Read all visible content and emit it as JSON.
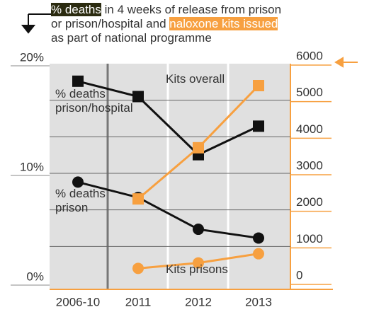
{
  "chart_data": {
    "type": "line",
    "title_parts": [
      "% deaths",
      " in 4 weeks of release from prison",
      "or prison/hospital and ",
      "naloxone kits issued",
      "as part of national programme"
    ],
    "categories": [
      "2006-10",
      "2011",
      "2012",
      "2013"
    ],
    "series": [
      {
        "name": "% deaths prison/hospital",
        "color": "#111111",
        "marker": "square",
        "values": [
          18.4,
          17.0,
          11.7,
          14.3
        ]
      },
      {
        "name": "% deaths prison",
        "color": "#111111",
        "marker": "circle",
        "values": [
          9.2,
          7.8,
          4.9,
          4.1
        ]
      },
      {
        "name": "Kits overall",
        "color": "#f7a040",
        "marker": "square",
        "axis": "y2",
        "values": [
          null,
          2300,
          3700,
          5400
        ]
      },
      {
        "name": "Kits prisons",
        "color": "#f7a040",
        "marker": "circle",
        "axis": "y2",
        "values": [
          null,
          400,
          550,
          800
        ]
      }
    ],
    "ylim": [
      0,
      20
    ],
    "yticks": [
      {
        "value": 0,
        "label": "0%"
      },
      {
        "value": 10,
        "label": "10%"
      },
      {
        "value": 20,
        "label": "20%"
      }
    ],
    "y2lim": [
      0,
      6000
    ],
    "y2ticks": [
      0,
      1000,
      2000,
      3000,
      4000,
      5000,
      6000
    ],
    "grid": true
  }
}
